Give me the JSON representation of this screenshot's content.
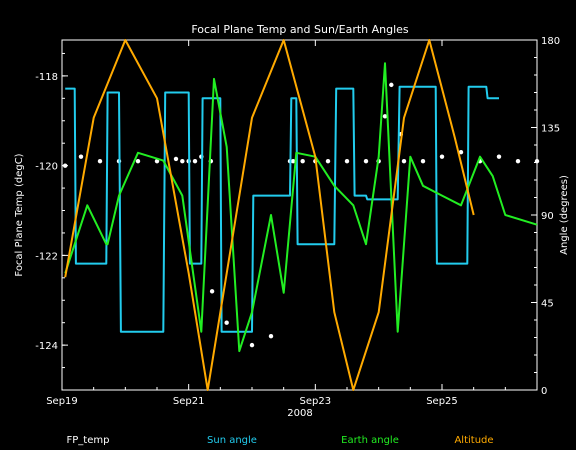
{
  "chart_data": {
    "type": "line",
    "title": "Focal Plane Temp and Sun/Earth Angles",
    "xlabel": "2008",
    "ylabel_left": "Focal Plane Temp (degC)",
    "ylabel_right": "Angle (degrees)",
    "x_range_days": [
      19.0,
      26.5
    ],
    "x_ticks": [
      {
        "day": 19,
        "label": "Sep19"
      },
      {
        "day": 21,
        "label": "Sep21"
      },
      {
        "day": 23,
        "label": "Sep23"
      },
      {
        "day": 25,
        "label": "Sep25"
      }
    ],
    "ylim_left": [
      -125.0,
      -117.2
    ],
    "yticks_left": [
      {
        "v": -118,
        "label": "-118"
      },
      {
        "v": -120,
        "label": "-120"
      },
      {
        "v": -122,
        "label": "-122"
      },
      {
        "v": -124,
        "label": "-124"
      }
    ],
    "ylim_right": [
      0,
      180
    ],
    "yticks_right": [
      {
        "v": 0,
        "label": "0"
      },
      {
        "v": 45,
        "label": "45"
      },
      {
        "v": 90,
        "label": "90"
      },
      {
        "v": 135,
        "label": "135"
      },
      {
        "v": 180,
        "label": "180"
      }
    ],
    "series": [
      {
        "name": "FP_temp",
        "axis": "left",
        "color": "#ffffff",
        "style": "points",
        "x": [
          19.05,
          19.3,
          19.6,
          19.9,
          20.2,
          20.5,
          20.8,
          20.9,
          21.0,
          21.1,
          21.2,
          21.35,
          21.37,
          21.6,
          22.0,
          22.3,
          22.6,
          22.65,
          22.8,
          23.0,
          23.2,
          23.5,
          23.8,
          24.0,
          24.1,
          24.2,
          24.35,
          24.4,
          24.7,
          25.0,
          25.3,
          25.6,
          25.9,
          26.2,
          26.5
        ],
        "y": [
          -120.0,
          -119.8,
          -119.9,
          -119.9,
          -119.9,
          -119.9,
          -119.85,
          -119.9,
          -119.9,
          -119.9,
          -119.8,
          -119.9,
          -122.8,
          -123.5,
          -124.0,
          -123.8,
          -119.9,
          -119.9,
          -119.9,
          -119.9,
          -119.9,
          -119.9,
          -119.9,
          -119.9,
          -118.9,
          -118.2,
          -119.3,
          -119.9,
          -119.9,
          -119.8,
          -119.7,
          -119.9,
          -119.8,
          -119.9,
          -119.9
        ]
      },
      {
        "name": "Sun angle",
        "axis": "right",
        "color": "#22ccee",
        "style": "line",
        "x": [
          19.05,
          19.2,
          19.22,
          19.7,
          19.72,
          19.9,
          19.93,
          20.6,
          20.63,
          21.0,
          21.02,
          21.2,
          21.22,
          21.5,
          21.52,
          22.0,
          22.02,
          22.6,
          22.62,
          22.7,
          22.72,
          23.3,
          23.33,
          23.6,
          23.62,
          23.8,
          23.82,
          24.3,
          24.33,
          24.9,
          24.92,
          25.4,
          25.42,
          25.7,
          25.72,
          25.9
        ],
        "y": [
          155,
          155,
          65,
          65,
          153,
          153,
          30,
          30,
          153,
          153,
          65,
          65,
          150,
          150,
          30,
          30,
          100,
          100,
          150,
          150,
          75,
          75,
          155,
          155,
          100,
          100,
          98,
          98,
          156,
          156,
          65,
          65,
          156,
          156,
          150,
          150
        ]
      },
      {
        "name": "Earth angle",
        "axis": "right",
        "color": "#22ee22",
        "style": "line",
        "x": [
          19.05,
          19.4,
          19.7,
          19.72,
          19.9,
          20.2,
          20.6,
          20.9,
          21.2,
          21.4,
          21.6,
          21.8,
          22.0,
          22.3,
          22.5,
          22.7,
          23.0,
          23.3,
          23.6,
          23.8,
          24.0,
          24.1,
          24.3,
          24.5,
          24.7,
          25.0,
          25.3,
          25.6,
          25.8,
          26.0,
          26.5
        ],
        "y": [
          60,
          95,
          75,
          75,
          100,
          122,
          118,
          100,
          30,
          160,
          125,
          20,
          40,
          90,
          50,
          122,
          120,
          105,
          95,
          75,
          120,
          168,
          30,
          120,
          105,
          100,
          95,
          120,
          110,
          90,
          85
        ]
      },
      {
        "name": "Altitude",
        "axis": "right",
        "color": "#ffaa00",
        "style": "line",
        "x": [
          19.05,
          19.5,
          20.0,
          20.5,
          21.0,
          21.3,
          21.6,
          22.0,
          22.5,
          23.0,
          23.3,
          23.6,
          24.0,
          24.4,
          24.8,
          25.2,
          25.5
        ],
        "y": [
          58,
          140,
          180,
          150,
          60,
          0,
          60,
          140,
          180,
          120,
          40,
          0,
          40,
          140,
          180,
          130,
          90
        ]
      }
    ],
    "legend": [
      "FP_temp",
      "Sun angle",
      "Earth angle",
      "Altitude"
    ],
    "legend_position": "bottom"
  }
}
